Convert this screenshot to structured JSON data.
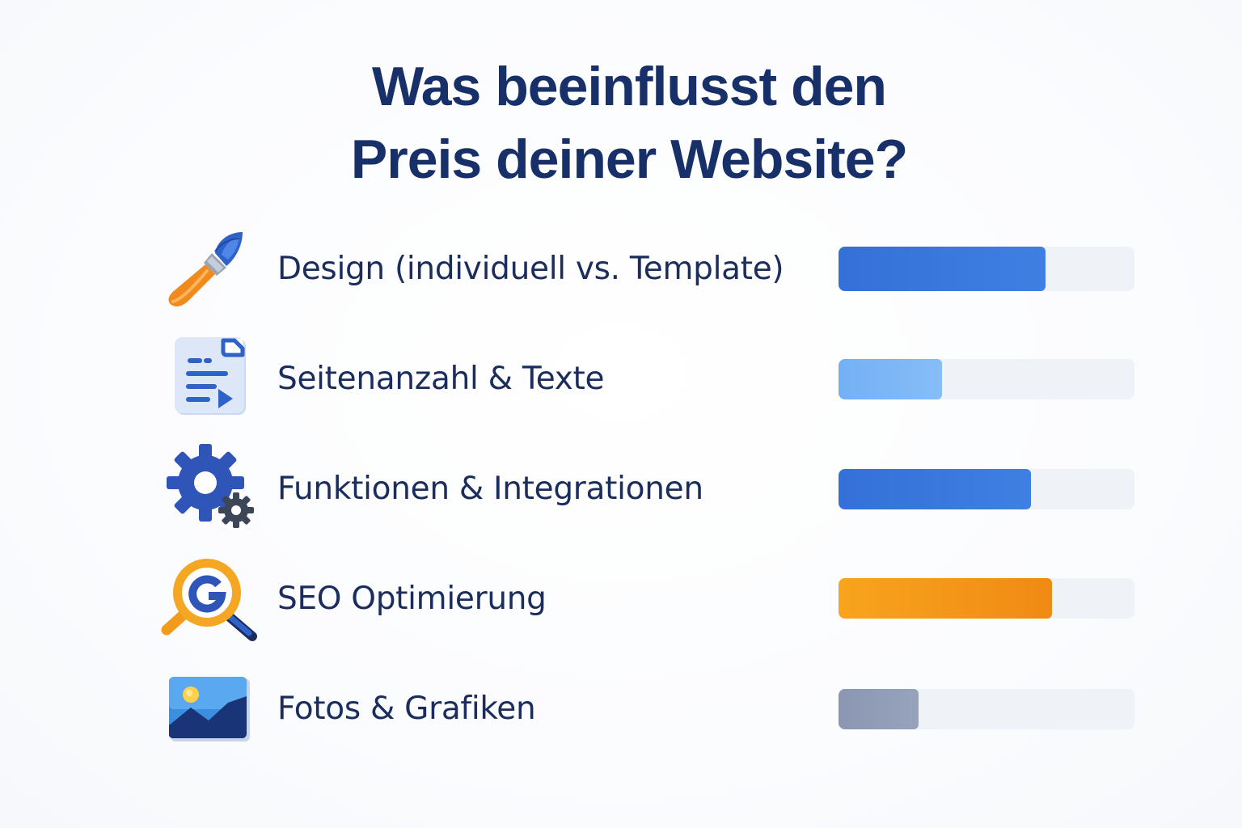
{
  "title": {
    "line1": "Was beeinflusst den",
    "line2": "Preis deiner Website?"
  },
  "chart_data": {
    "type": "bar",
    "orientation": "horizontal",
    "title": "Was beeinflusst den Preis deiner Website?",
    "xlim": [
      0,
      100
    ],
    "grid": false,
    "categories": [
      "Design (individuell vs. Template)",
      "Seitenanzahl & Texte",
      "Funktionen & Integrationen",
      "SEO Optimierung",
      "Fotos & Grafiken"
    ],
    "values": [
      70,
      35,
      65,
      72,
      27
    ],
    "bar_colors": [
      "#3a78dd",
      "#7ab6f7",
      "#3a78dd",
      "#f69a1a",
      "#8e9ab4"
    ],
    "icons": [
      "paintbrush-icon",
      "document-icon",
      "gears-icon",
      "seo-magnifier-icon",
      "image-icon"
    ]
  },
  "colors": {
    "title": "#17306a",
    "label": "#1b2d5c",
    "track": "#eff2f7",
    "blue": "#3a78dd",
    "light_blue": "#7ab6f7",
    "orange": "#f69a1a",
    "gray": "#8e9ab4"
  }
}
